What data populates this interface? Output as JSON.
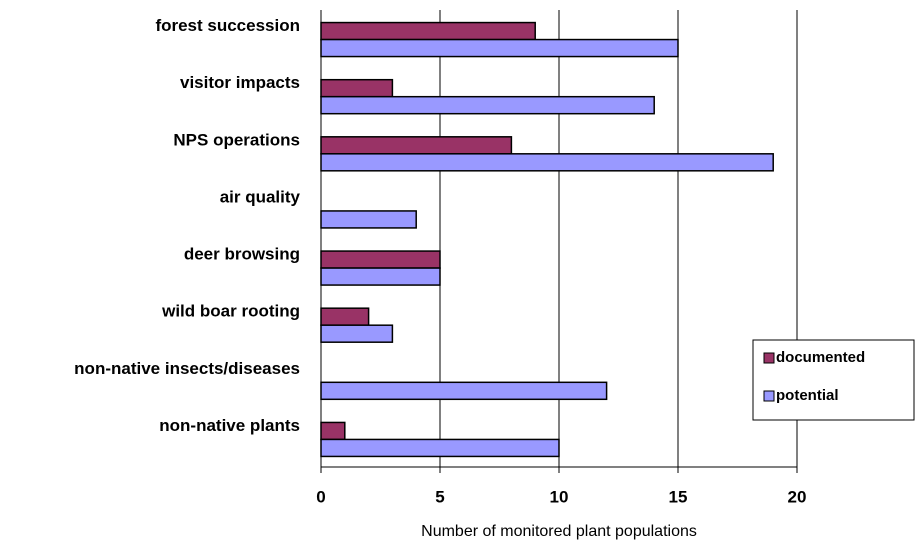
{
  "chart_data": {
    "type": "bar",
    "orientation": "horizontal",
    "x_label": "Number of monitored plant populations",
    "categories": [
      "forest succession",
      "visitor impacts",
      "NPS operations",
      "air quality",
      "deer browsing",
      "wild boar rooting",
      "non-native insects/diseases",
      "non-native plants"
    ],
    "series": [
      {
        "name": "documented",
        "color": "#993366",
        "values": [
          9,
          3,
          8,
          0,
          5,
          2,
          0,
          1
        ]
      },
      {
        "name": "potential",
        "color": "#9999ff",
        "values": [
          15,
          14,
          19,
          4,
          5,
          3,
          12,
          10
        ]
      }
    ],
    "xlim": [
      0,
      20
    ],
    "xticks": [
      0,
      5,
      10,
      15,
      20
    ],
    "grid": true,
    "legend": "right"
  }
}
